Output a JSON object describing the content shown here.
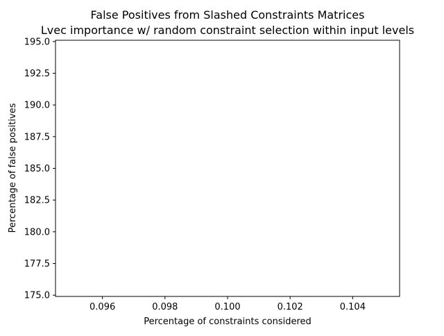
{
  "chart_data": {
    "type": "scatter",
    "title": "False Positives from Slashed Constraints Matrices",
    "subtitle": "Lvec importance w/ random constraint selection within input levels",
    "xlabel": "Percentage of constraints considered",
    "ylabel": "Percentage of false positives",
    "xlim": [
      0.0945,
      0.1055
    ],
    "ylim": [
      174.9,
      195.1
    ],
    "x_ticks": [
      0.096,
      0.098,
      0.1,
      0.102,
      0.104
    ],
    "x_tick_labels": [
      "0.096",
      "0.098",
      "0.100",
      "0.102",
      "0.104"
    ],
    "y_ticks": [
      175.0,
      177.5,
      180.0,
      182.5,
      185.0,
      187.5,
      190.0,
      192.5,
      195.0
    ],
    "y_tick_labels": [
      "175.0",
      "177.5",
      "180.0",
      "182.5",
      "185.0",
      "187.5",
      "190.0",
      "192.5",
      "195.0"
    ],
    "grid": false,
    "series": [
      {
        "x": [],
        "y": []
      }
    ]
  }
}
